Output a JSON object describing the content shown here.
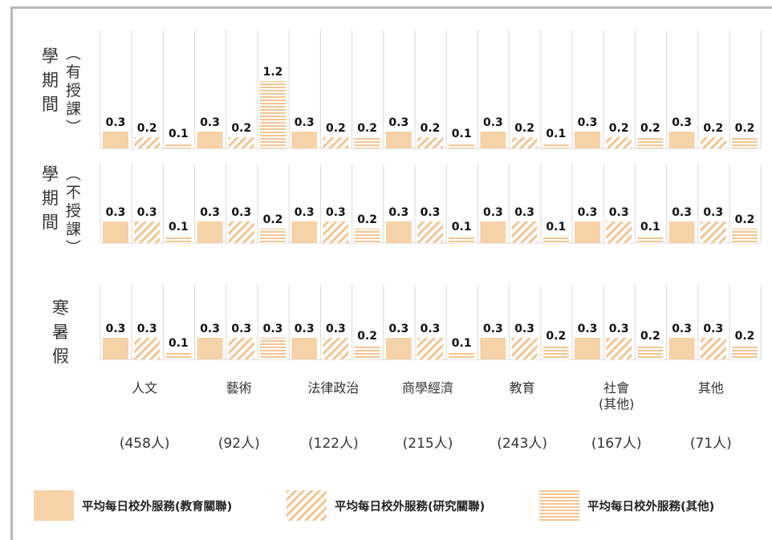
{
  "chart_data": {
    "type": "bar",
    "row_labels": [
      {
        "main": [
          "學",
          "期",
          "間"
        ],
        "paren": [
          "︵",
          "有",
          "授",
          "課",
          "︶"
        ]
      },
      {
        "main": [
          "學",
          "期",
          "間"
        ],
        "paren": [
          "︵",
          "不",
          "授",
          "課",
          "︶"
        ]
      },
      {
        "main": [
          "寒",
          "暑",
          "假"
        ],
        "paren": []
      }
    ],
    "categories": [
      "人文",
      "藝術",
      "法律政治",
      "商學經濟",
      "教育",
      "社會\n(其他)",
      "其他"
    ],
    "counts": [
      "(458人)",
      "(92人)",
      "(122人)",
      "(215人)",
      "(243人)",
      "(167人)",
      "(71人)"
    ],
    "series": [
      {
        "name": "平均每日校外服務(教育關聯)",
        "pattern": "solid"
      },
      {
        "name": "平均每日校外服務(研究關聯)",
        "pattern": "diagonal"
      },
      {
        "name": "平均每日校外服務(其他)",
        "pattern": "horizontal"
      }
    ],
    "panels": [
      {
        "values": [
          [
            0.3,
            0.2,
            0.1
          ],
          [
            0.3,
            0.2,
            1.2
          ],
          [
            0.3,
            0.2,
            0.2
          ],
          [
            0.3,
            0.2,
            0.1
          ],
          [
            0.3,
            0.2,
            0.1
          ],
          [
            0.3,
            0.2,
            0.2
          ],
          [
            0.3,
            0.2,
            0.2
          ]
        ]
      },
      {
        "values": [
          [
            0.3,
            0.3,
            0.1
          ],
          [
            0.3,
            0.3,
            0.2
          ],
          [
            0.3,
            0.3,
            0.2
          ],
          [
            0.3,
            0.3,
            0.1
          ],
          [
            0.3,
            0.3,
            0.1
          ],
          [
            0.3,
            0.3,
            0.1
          ],
          [
            0.3,
            0.3,
            0.2
          ]
        ]
      },
      {
        "values": [
          [
            0.3,
            0.3,
            0.1
          ],
          [
            0.3,
            0.3,
            0.3
          ],
          [
            0.3,
            0.3,
            0.2
          ],
          [
            0.3,
            0.3,
            0.1
          ],
          [
            0.3,
            0.3,
            0.2
          ],
          [
            0.3,
            0.3,
            0.2
          ],
          [
            0.3,
            0.3,
            0.2
          ]
        ]
      }
    ],
    "colors": {
      "bar": "#f6d2a8",
      "bar_stroke": "#f3c592",
      "grid": "#d9d9d9",
      "frame": "#b7b7b7"
    },
    "grid": true,
    "legend_position": "bottom"
  }
}
